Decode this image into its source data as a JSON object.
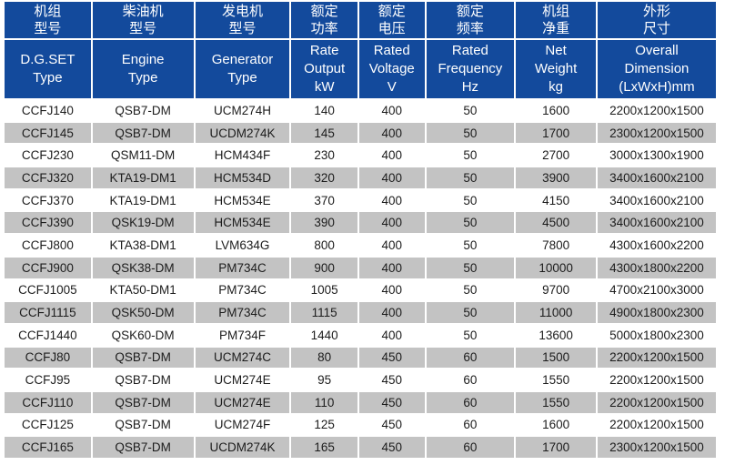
{
  "colors": {
    "header_blue": "#134a9c",
    "stripe_gray": "#c3c3c3",
    "header_text": "#ffffff",
    "body_text": "#1c1c1c"
  },
  "table": {
    "columns": [
      {
        "id": "dgset_type",
        "cn": "机组\n型号",
        "en": "D.G.SET\nType"
      },
      {
        "id": "engine_type",
        "cn": "柴油机\n型号",
        "en": "Engine\nType"
      },
      {
        "id": "generator_type",
        "cn": "发电机\n型号",
        "en": "Generator\nType"
      },
      {
        "id": "rate_output",
        "cn": "额定\n功率",
        "en": "Rate\nOutput\nkW"
      },
      {
        "id": "rated_voltage",
        "cn": "额定\n电压",
        "en": "Rated\nVoltage\nV"
      },
      {
        "id": "rated_frequency",
        "cn": "额定\n频率",
        "en": "Rated\nFrequency\nHz"
      },
      {
        "id": "net_weight",
        "cn": "机组\n净重",
        "en": "Net\nWeight\nkg"
      },
      {
        "id": "overall_dimension",
        "cn": "外形\n尺寸",
        "en": "Overall\nDimension\n(LxWxH)mm"
      }
    ],
    "rows": [
      [
        "CCFJ140",
        "QSB7-DM",
        "UCM274H",
        "140",
        "400",
        "50",
        "1600",
        "2200x1200x1500"
      ],
      [
        "CCFJ145",
        "QSB7-DM",
        "UCDM274K",
        "145",
        "400",
        "50",
        "1700",
        "2300x1200x1500"
      ],
      [
        "CCFJ230",
        "QSM11-DM",
        "HCM434F",
        "230",
        "400",
        "50",
        "2700",
        "3000x1300x1900"
      ],
      [
        "CCFJ320",
        "KTA19-DM1",
        "HCM534D",
        "320",
        "400",
        "50",
        "3900",
        "3400x1600x2100"
      ],
      [
        "CCFJ370",
        "KTA19-DM1",
        "HCM534E",
        "370",
        "400",
        "50",
        "4150",
        "3400x1600x2100"
      ],
      [
        "CCFJ390",
        "QSK19-DM",
        "HCM534E",
        "390",
        "400",
        "50",
        "4500",
        "3400x1600x2100"
      ],
      [
        "CCFJ800",
        "KTA38-DM1",
        "LVM634G",
        "800",
        "400",
        "50",
        "7800",
        "4300x1600x2200"
      ],
      [
        "CCFJ900",
        "QSK38-DM",
        "PM734C",
        "900",
        "400",
        "50",
        "10000",
        "4300x1800x2200"
      ],
      [
        "CCFJ1005",
        "KTA50-DM1",
        "PM734C",
        "1005",
        "400",
        "50",
        "9700",
        "4700x2100x3000"
      ],
      [
        "CCFJ1115",
        "QSK50-DM",
        "PM734C",
        "1115",
        "400",
        "50",
        "11000",
        "4900x1800x2300"
      ],
      [
        "CCFJ1440",
        "QSK60-DM",
        "PM734F",
        "1440",
        "400",
        "50",
        "13600",
        "5000x1800x2300"
      ],
      [
        "CCFJ80",
        "QSB7-DM",
        "UCM274C",
        "80",
        "450",
        "60",
        "1500",
        "2200x1200x1500"
      ],
      [
        "CCFJ95",
        "QSB7-DM",
        "UCM274E",
        "95",
        "450",
        "60",
        "1550",
        "2200x1200x1500"
      ],
      [
        "CCFJ110",
        "QSB7-DM",
        "UCM274E",
        "110",
        "450",
        "60",
        "1550",
        "2200x1200x1500"
      ],
      [
        "CCFJ125",
        "QSB7-DM",
        "UCM274F",
        "125",
        "450",
        "60",
        "1600",
        "2200x1200x1500"
      ],
      [
        "CCFJ165",
        "QSB7-DM",
        "UCDM274K",
        "165",
        "450",
        "60",
        "1700",
        "2300x1200x1500"
      ]
    ]
  }
}
